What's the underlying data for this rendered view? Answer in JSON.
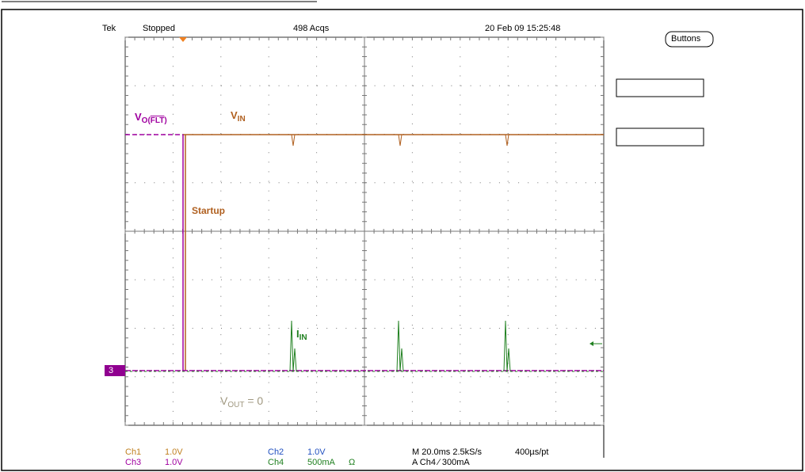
{
  "header": {
    "brand": "Tek",
    "state": "Stopped",
    "acquisitions": "498 Acqs",
    "timestamp": "20 Feb 09 15:25:48"
  },
  "buttons": {
    "label": "Buttons"
  },
  "annotations": {
    "vo": {
      "main": "V",
      "sub_a": "O(",
      "sub_b": "FLT",
      "sub_c": ")"
    },
    "vin": {
      "main": "V",
      "sub": "IN"
    },
    "startup": "Startup",
    "iin": {
      "main": "I",
      "sub": "IN"
    },
    "vout": {
      "main": "V",
      "sub": "OUT",
      "rest": " = 0"
    },
    "ch3_marker": "3"
  },
  "readout": {
    "ch1": {
      "name": "Ch1",
      "scale": "1.0V"
    },
    "ch3": {
      "name": "Ch3",
      "scale": "1.0V"
    },
    "ch2": {
      "name": "Ch2",
      "scale": "1.0V"
    },
    "ch4": {
      "name": "Ch4",
      "scale": "500mA",
      "extra": "Ω"
    },
    "timebase": "M 20.0ms 2.5kS/s",
    "resolution": "400µs/pt",
    "trigger": "A Ch4 ⁄ 300mA"
  }
}
